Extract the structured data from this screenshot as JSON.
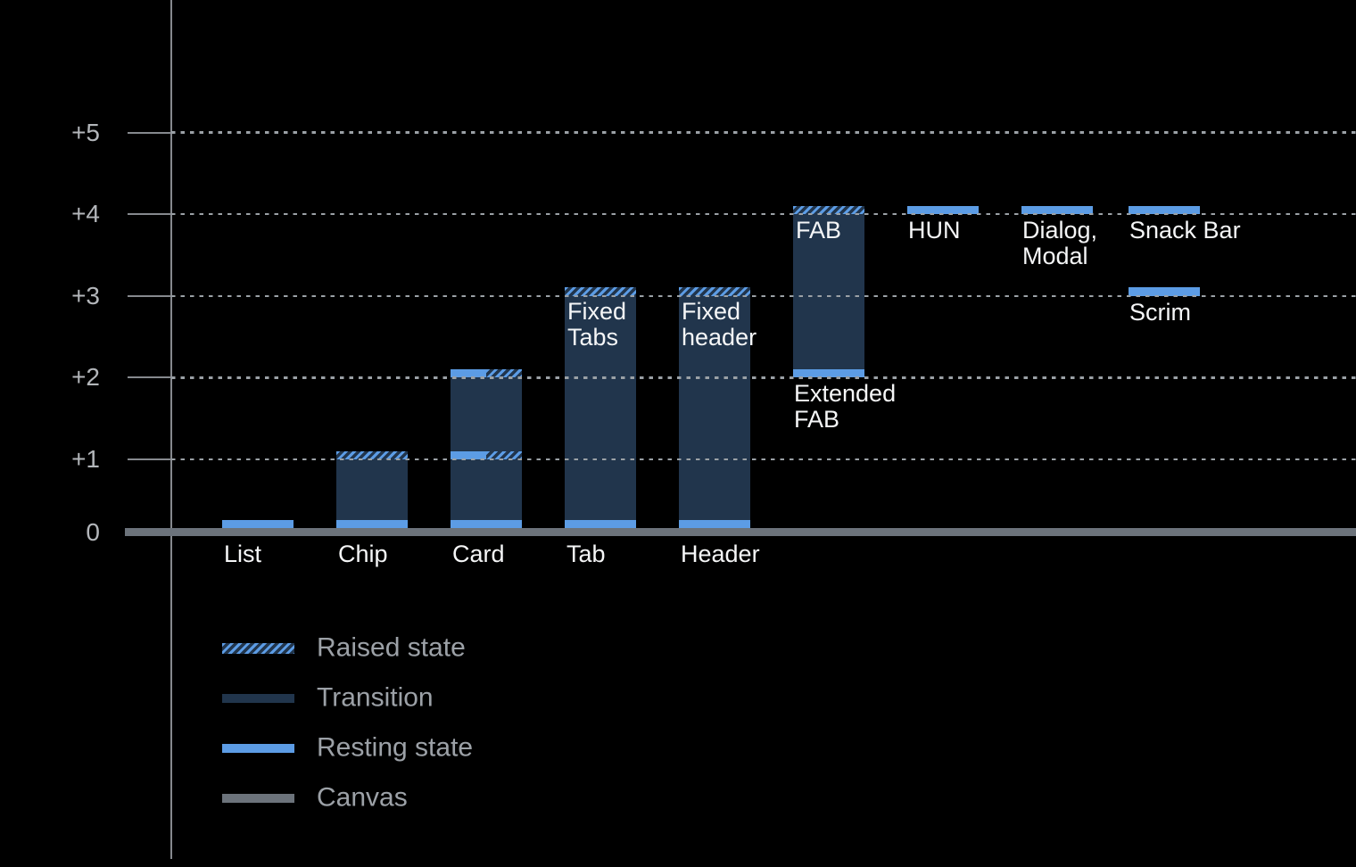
{
  "colors": {
    "background": "#000000",
    "resting_blue": "#5C9CE5",
    "transition_navy": "#21354C",
    "canvas_gray": "#6C737B",
    "axis_gray": "#86898E",
    "grid_dash": "#9BA1A6",
    "tick_label": "#B3B6BA",
    "bar_label": "#F5F6F7",
    "legend_text": "#9CA1A7"
  },
  "chart_data": {
    "type": "bar",
    "title": "",
    "xlabel": "",
    "ylabel": "",
    "y_axis": {
      "tick_labels": [
        "+5",
        "+4",
        "+3",
        "+2",
        "+1",
        "0"
      ],
      "tick_values": [
        5,
        4,
        3,
        2,
        1,
        0
      ],
      "range": [
        0,
        5.5
      ],
      "grid": "dotted-horizontal",
      "baseline_value": 0
    },
    "x_axis": {
      "labels": [
        "List",
        "Chip",
        "Card",
        "Tab",
        "Header"
      ]
    },
    "legend": [
      {
        "key": "raised",
        "label": "Raised state"
      },
      {
        "key": "transition",
        "label": "Transition"
      },
      {
        "key": "resting",
        "label": "Resting state"
      },
      {
        "key": "canvas",
        "label": "Canvas"
      }
    ],
    "legend_position": "bottom-left",
    "items": [
      {
        "id": "list",
        "col": 0,
        "axis_label": "List",
        "resting": [
          0
        ],
        "raised": [],
        "body": null
      },
      {
        "id": "chip",
        "col": 1,
        "axis_label": "Chip",
        "resting": [
          0
        ],
        "raised": [
          1
        ],
        "body": [
          0,
          1
        ]
      },
      {
        "id": "card",
        "col": 2,
        "axis_label": "Card",
        "resting": [
          0,
          1,
          2
        ],
        "raised": [
          1,
          2
        ],
        "body": [
          0,
          2
        ]
      },
      {
        "id": "tab",
        "col": 3,
        "axis_label": "Tab",
        "inner_label": "Fixed\nTabs",
        "resting": [
          0
        ],
        "raised": [
          3
        ],
        "body": [
          0,
          3
        ]
      },
      {
        "id": "header",
        "col": 4,
        "axis_label": "Header",
        "inner_label": "Fixed\nheader",
        "resting": [
          0
        ],
        "raised": [
          3
        ],
        "body": [
          0,
          3
        ]
      },
      {
        "id": "fab",
        "col": 5,
        "inner_label": "FAB",
        "below_label": "Extended\nFAB",
        "resting": [
          2
        ],
        "raised": [
          4
        ],
        "body": [
          2,
          4
        ]
      },
      {
        "id": "hun",
        "col": 6,
        "below_label": "HUN",
        "resting": [
          4
        ],
        "raised": [],
        "body": null
      },
      {
        "id": "dialog-modal",
        "col": 7,
        "below_label": "Dialog,\nModal",
        "resting": [
          4
        ],
        "raised": [],
        "body": null
      },
      {
        "id": "snack-bar",
        "col": 8,
        "below_label": "Snack Bar",
        "resting": [
          4
        ],
        "raised": [],
        "body": null
      },
      {
        "id": "scrim",
        "col": 8,
        "below_label": "Scrim",
        "resting": [
          3
        ],
        "raised": [],
        "body": null
      }
    ]
  }
}
